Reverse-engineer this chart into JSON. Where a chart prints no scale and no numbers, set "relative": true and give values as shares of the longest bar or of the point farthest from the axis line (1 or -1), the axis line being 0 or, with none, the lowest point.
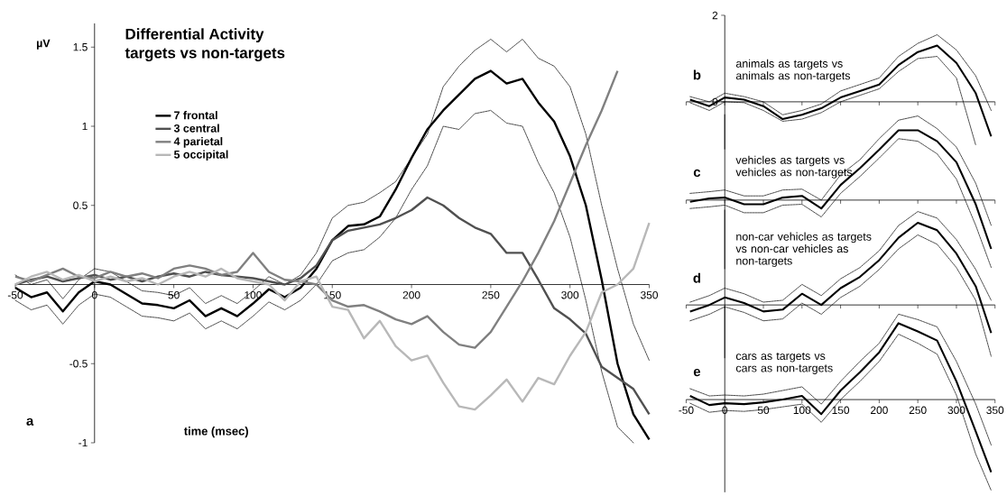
{
  "chart_data": [
    {
      "type": "line",
      "title": "Differential Activity",
      "subtitle": "targets vs non-targets",
      "xlabel": "time (msec)",
      "ylabel": "µV",
      "annotations": [
        "a"
      ],
      "x": [
        -50,
        -40,
        -30,
        -20,
        -10,
        0,
        10,
        20,
        30,
        40,
        50,
        60,
        70,
        80,
        90,
        100,
        110,
        120,
        130,
        140,
        150,
        160,
        170,
        180,
        190,
        200,
        210,
        220,
        230,
        240,
        250,
        260,
        270,
        280,
        290,
        300,
        310,
        320,
        330,
        340,
        350
      ],
      "series": [
        {
          "name": "7 frontal",
          "color": "#000000",
          "values": [
            -0.02,
            -0.08,
            -0.05,
            -0.17,
            -0.05,
            0.02,
            0.0,
            -0.06,
            -0.12,
            -0.13,
            -0.15,
            -0.1,
            -0.2,
            -0.15,
            -0.2,
            -0.12,
            -0.03,
            -0.08,
            -0.02,
            0.1,
            0.28,
            0.37,
            0.38,
            0.43,
            0.6,
            0.8,
            0.98,
            1.1,
            1.2,
            1.3,
            1.35,
            1.27,
            1.3,
            1.15,
            1.03,
            0.81,
            0.5,
            0.03,
            -0.5,
            -0.82,
            -0.98
          ]
        },
        {
          "color": "#000000",
          "line_style": "dashed",
          "values": [
            0.06,
            0.0,
            0.03,
            -0.09,
            0.03,
            0.1,
            0.08,
            0.02,
            -0.04,
            -0.05,
            -0.07,
            -0.02,
            -0.12,
            -0.07,
            -0.12,
            -0.04,
            0.05,
            0.0,
            0.06,
            0.2,
            0.42,
            0.5,
            0.52,
            0.58,
            0.65,
            0.8,
            0.95,
            1.25,
            1.38,
            1.48,
            1.55,
            1.47,
            1.55,
            1.43,
            1.38,
            1.25,
            0.95,
            0.5,
            0.1,
            -0.25,
            -0.48
          ]
        },
        {
          "color": "#000000",
          "line_style": "dashed",
          "values": [
            -0.1,
            -0.16,
            -0.13,
            -0.25,
            -0.13,
            -0.06,
            -0.08,
            -0.14,
            -0.2,
            -0.21,
            -0.23,
            -0.18,
            -0.28,
            -0.23,
            -0.28,
            -0.2,
            -0.11,
            -0.16,
            -0.1,
            0.0,
            0.15,
            0.2,
            0.22,
            0.3,
            0.42,
            0.6,
            0.75,
            1.0,
            0.98,
            1.08,
            1.1,
            1.02,
            1.0,
            0.77,
            0.58,
            0.3,
            -0.1,
            -0.55,
            -0.9,
            -1.0,
            null
          ]
        },
        {
          "name": "3 central",
          "color": "#505050",
          "values": [
            0.0,
            0.03,
            0.05,
            0.02,
            0.04,
            0.06,
            0.03,
            0.05,
            0.02,
            0.05,
            0.07,
            0.05,
            0.08,
            0.06,
            0.05,
            0.04,
            0.02,
            0.0,
            0.04,
            0.12,
            0.28,
            0.34,
            0.36,
            0.38,
            0.42,
            0.47,
            0.55,
            0.5,
            0.42,
            0.36,
            0.32,
            0.2,
            0.2,
            0.03,
            -0.15,
            -0.22,
            -0.31,
            -0.52,
            -0.59,
            -0.66,
            -0.82
          ]
        },
        {
          "name": "4 parietal",
          "color": "#808080",
          "values": [
            0.05,
            0.02,
            0.06,
            0.1,
            0.05,
            0.04,
            0.08,
            0.05,
            0.07,
            0.04,
            0.1,
            0.12,
            0.1,
            0.06,
            0.08,
            0.2,
            0.08,
            0.03,
            0.02,
            0.0,
            -0.1,
            -0.14,
            -0.13,
            -0.17,
            -0.22,
            -0.25,
            -0.2,
            -0.3,
            -0.38,
            -0.4,
            -0.3,
            -0.14,
            0.02,
            0.2,
            0.4,
            0.64,
            0.88,
            1.1,
            1.35,
            null,
            null
          ]
        },
        {
          "name": "5 occipital",
          "color": "#b8b8b8",
          "values": [
            0.0,
            0.05,
            0.08,
            0.03,
            0.06,
            0.02,
            0.05,
            0.02,
            0.04,
            0.0,
            0.05,
            0.08,
            0.05,
            0.1,
            0.04,
            0.02,
            0.0,
            -0.1,
            0.02,
            0.05,
            -0.14,
            -0.16,
            -0.34,
            -0.23,
            -0.39,
            -0.48,
            -0.45,
            -0.62,
            -0.77,
            -0.79,
            -0.7,
            -0.6,
            -0.74,
            -0.59,
            -0.63,
            -0.45,
            -0.3,
            -0.05,
            0.0,
            0.1,
            0.39
          ]
        }
      ],
      "xlim": [
        -50,
        350
      ],
      "ylim": [
        -1,
        1.65
      ],
      "xticks": [
        -50,
        0,
        50,
        100,
        150,
        200,
        250,
        300,
        350
      ],
      "yticks": [
        -1,
        -0.5,
        0.5,
        1,
        1.5
      ],
      "legend": "top left",
      "marker": "none",
      "line_style": "solid"
    },
    {
      "type": "line",
      "annotations": [
        "b",
        "animals as targets vs animals as non-targets"
      ],
      "x": [
        -45,
        -20,
        0,
        25,
        50,
        75,
        100,
        125,
        150,
        175,
        200,
        225,
        250,
        275,
        300,
        325,
        345
      ],
      "series": [
        {
          "color": "#000000",
          "values": [
            0.05,
            -0.1,
            0.1,
            0.05,
            -0.1,
            -0.4,
            -0.3,
            -0.15,
            0.1,
            0.25,
            0.4,
            0.85,
            1.15,
            1.3,
            0.9,
            0.2,
            -0.8
          ]
        },
        {
          "color": "#000000",
          "line_style": "dashed",
          "values": [
            0.12,
            0.0,
            0.2,
            0.12,
            0.0,
            -0.3,
            -0.2,
            -0.05,
            0.25,
            0.4,
            0.55,
            1.05,
            1.35,
            1.55,
            1.2,
            0.6,
            -0.2
          ]
        },
        {
          "color": "#000000",
          "line_style": "dashed",
          "values": [
            -0.02,
            -0.2,
            0.0,
            -0.02,
            -0.2,
            -0.45,
            -0.4,
            -0.25,
            0.0,
            0.15,
            0.3,
            0.7,
            1.0,
            1.05,
            0.55,
            -1.0,
            null
          ]
        }
      ],
      "xlim": [
        -50,
        350
      ],
      "ylim": [
        -1.1,
        2
      ],
      "xticks": [
        -50,
        0,
        50,
        100,
        150,
        200,
        250,
        300,
        350
      ],
      "yticks": [
        0,
        2
      ],
      "tick_labels": "y",
      "marker": "none",
      "line_style": "solid"
    },
    {
      "type": "line",
      "relative": true,
      "annotations": [
        "c",
        "vehicles as targets vs vehicles as non-targets"
      ],
      "x": [
        -45,
        -20,
        0,
        25,
        50,
        75,
        100,
        125,
        150,
        175,
        200,
        225,
        250,
        275,
        300,
        325,
        345
      ],
      "series": [
        {
          "color": "#000000",
          "values": [
            -0.02,
            0.02,
            0.03,
            -0.05,
            -0.05,
            0.03,
            0.05,
            -0.1,
            0.18,
            0.38,
            0.6,
            0.83,
            0.83,
            0.7,
            0.45,
            -0.05,
            -0.58
          ]
        },
        {
          "color": "#000000",
          "line_style": "dashed",
          "values": [
            0.08,
            0.1,
            0.12,
            0.05,
            0.05,
            0.12,
            0.13,
            0.0,
            0.3,
            0.48,
            0.73,
            0.95,
            1.0,
            0.85,
            0.63,
            0.2,
            -0.3
          ]
        },
        {
          "color": "#000000",
          "line_style": "dashed",
          "values": [
            -0.1,
            -0.08,
            -0.06,
            -0.15,
            -0.15,
            -0.06,
            -0.05,
            -0.2,
            0.08,
            0.28,
            0.5,
            0.73,
            0.7,
            0.55,
            0.25,
            -0.3,
            -0.8
          ]
        }
      ],
      "xlim": [
        -50,
        350
      ],
      "xticks": [
        -50,
        0,
        50,
        100,
        150,
        200,
        250,
        300,
        350
      ],
      "tick_labels": false,
      "marker": "none",
      "line_style": "solid"
    },
    {
      "type": "line",
      "relative": true,
      "annotations": [
        "d",
        "non-car vehicles as targets vs non-car vehicles as non-targets"
      ],
      "x": [
        -45,
        -20,
        0,
        25,
        50,
        75,
        100,
        125,
        150,
        175,
        200,
        225,
        250,
        275,
        300,
        325,
        345
      ],
      "series": [
        {
          "color": "#000000",
          "values": [
            -0.07,
            0.0,
            0.08,
            0.02,
            -0.07,
            -0.05,
            0.12,
            0.0,
            0.18,
            0.3,
            0.48,
            0.72,
            0.88,
            0.8,
            0.55,
            0.2,
            -0.3
          ]
        },
        {
          "color": "#000000",
          "line_style": "dashed",
          "values": [
            0.03,
            0.1,
            0.18,
            0.12,
            0.03,
            0.05,
            0.22,
            0.1,
            0.28,
            0.4,
            0.58,
            0.85,
            1.0,
            0.93,
            0.7,
            0.38,
            0.05
          ]
        },
        {
          "color": "#000000",
          "line_style": "dashed",
          "values": [
            -0.17,
            -0.1,
            -0.02,
            -0.08,
            -0.17,
            -0.15,
            0.02,
            -0.1,
            0.08,
            0.2,
            0.38,
            0.6,
            0.75,
            0.65,
            0.4,
            0.05,
            -0.55
          ]
        }
      ],
      "xlim": [
        -50,
        350
      ],
      "xticks": [
        -50,
        0,
        50,
        100,
        150,
        200,
        250,
        300,
        350
      ],
      "tick_labels": false,
      "marker": "none",
      "line_style": "solid"
    },
    {
      "type": "line",
      "relative": true,
      "annotations": [
        "e",
        "cars as targets vs cars as non-targets"
      ],
      "x": [
        -45,
        -20,
        0,
        25,
        50,
        75,
        100,
        125,
        150,
        175,
        200,
        225,
        250,
        275,
        300,
        325,
        345
      ],
      "series": [
        {
          "color": "#000000",
          "values": [
            0.04,
            -0.06,
            -0.04,
            -0.05,
            -0.03,
            0.0,
            0.04,
            -0.16,
            0.1,
            0.3,
            0.52,
            0.84,
            0.75,
            0.65,
            0.2,
            -0.35,
            -0.8
          ]
        },
        {
          "color": "#000000",
          "line_style": "dashed",
          "values": [
            0.12,
            0.04,
            0.05,
            0.04,
            0.06,
            0.1,
            0.14,
            -0.05,
            0.2,
            0.42,
            0.62,
            0.94,
            0.88,
            0.8,
            0.42,
            -0.05,
            -0.5
          ]
        },
        {
          "color": "#000000",
          "line_style": "dashed",
          "values": [
            -0.04,
            -0.14,
            -0.12,
            -0.13,
            -0.11,
            -0.08,
            -0.05,
            -0.25,
            0.0,
            0.2,
            0.42,
            0.72,
            0.62,
            0.5,
            0.05,
            -0.6,
            -1.0
          ]
        }
      ],
      "xlim": [
        -50,
        350
      ],
      "xticks": [
        -50,
        0,
        50,
        100,
        150,
        200,
        250,
        300,
        350
      ],
      "tick_labels": "x",
      "marker": "none",
      "line_style": "solid"
    }
  ]
}
